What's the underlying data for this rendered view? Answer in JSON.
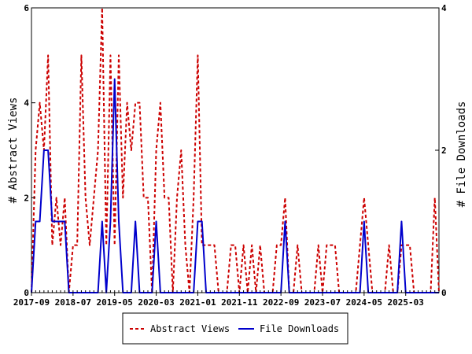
{
  "chart_data": {
    "type": "line",
    "title": "",
    "xlabel": "",
    "ylabel": "# Abstract Views",
    "y2label": "# File Downloads",
    "ylim": [
      0,
      6
    ],
    "y2lim": [
      0,
      4
    ],
    "yticks": [
      0,
      2,
      4,
      6
    ],
    "y2ticks": [
      0,
      2,
      4
    ],
    "x_start": "2017-09",
    "x_end": "2025-11",
    "x_ticks": [
      "2017-09",
      "2018-07",
      "2019-05",
      "2020-03",
      "2021-01",
      "2021-11",
      "2022-09",
      "2023-07",
      "2024-05",
      "2025-03"
    ],
    "grid": false,
    "legend_position": "bottom",
    "colors": {
      "views": "#cc0000",
      "downloads": "#0000cc"
    },
    "series": [
      {
        "name": "Abstract Views",
        "axis": "left",
        "style": "dashed",
        "x": [
          "2017-09",
          "2017-10",
          "2017-11",
          "2017-12",
          "2018-01",
          "2018-02",
          "2018-03",
          "2018-04",
          "2018-05",
          "2018-06",
          "2018-07",
          "2018-08",
          "2018-09",
          "2018-10",
          "2018-11",
          "2018-12",
          "2019-01",
          "2019-02",
          "2019-03",
          "2019-04",
          "2019-05",
          "2019-06",
          "2019-07",
          "2019-08",
          "2019-09",
          "2019-10",
          "2019-11",
          "2019-12",
          "2020-01",
          "2020-02",
          "2020-03",
          "2020-04",
          "2020-05",
          "2020-06",
          "2020-07",
          "2020-08",
          "2020-09",
          "2020-10",
          "2020-11",
          "2020-12",
          "2021-01",
          "2021-02",
          "2021-03",
          "2021-04",
          "2021-05",
          "2021-06",
          "2021-07",
          "2021-08",
          "2021-09",
          "2021-10",
          "2021-11",
          "2021-12",
          "2022-01",
          "2022-02",
          "2022-03",
          "2022-04",
          "2022-05",
          "2022-06",
          "2022-07",
          "2022-08",
          "2022-09",
          "2022-10",
          "2022-11",
          "2022-12",
          "2023-01",
          "2023-02",
          "2023-03",
          "2023-04",
          "2023-05",
          "2023-06",
          "2023-07",
          "2023-08",
          "2023-09",
          "2023-10",
          "2023-11",
          "2023-12",
          "2024-01",
          "2024-02",
          "2024-03",
          "2024-04",
          "2024-05",
          "2024-06",
          "2024-07",
          "2024-08",
          "2024-09",
          "2024-10",
          "2024-11",
          "2024-12",
          "2025-01",
          "2025-02",
          "2025-03",
          "2025-04",
          "2025-05",
          "2025-06",
          "2025-07",
          "2025-08",
          "2025-09",
          "2025-10",
          "2025-11"
        ],
        "values": [
          0,
          3,
          4,
          3,
          5,
          1,
          2,
          1,
          2,
          0,
          1,
          1,
          5,
          2,
          1,
          2,
          3,
          6,
          1,
          5,
          1,
          5,
          2,
          4,
          3,
          4,
          4,
          2,
          2,
          0,
          3,
          4,
          2,
          2,
          0,
          2,
          3,
          1,
          0,
          2,
          5,
          1,
          1,
          1,
          1,
          0,
          0,
          0,
          1,
          1,
          0,
          1,
          0,
          1,
          0,
          1,
          0,
          0,
          0,
          1,
          1,
          2,
          0,
          0,
          1,
          0,
          0,
          0,
          0,
          1,
          0,
          1,
          1,
          1,
          0,
          0,
          0,
          0,
          0,
          1,
          2,
          1,
          0,
          0,
          0,
          0,
          1,
          0,
          0,
          1,
          1,
          1,
          0,
          0,
          0,
          0,
          0,
          2,
          0
        ]
      },
      {
        "name": "File Downloads",
        "axis": "right",
        "style": "solid",
        "x": [
          "2017-09",
          "2017-10",
          "2017-11",
          "2017-12",
          "2018-01",
          "2018-02",
          "2018-03",
          "2018-04",
          "2018-05",
          "2018-06",
          "2018-07",
          "2018-08",
          "2018-09",
          "2018-10",
          "2018-11",
          "2018-12",
          "2019-01",
          "2019-02",
          "2019-03",
          "2019-04",
          "2019-05",
          "2019-06",
          "2019-07",
          "2019-08",
          "2019-09",
          "2019-10",
          "2019-11",
          "2019-12",
          "2020-01",
          "2020-02",
          "2020-03",
          "2020-04",
          "2020-05",
          "2020-06",
          "2020-07",
          "2020-08",
          "2020-09",
          "2020-10",
          "2020-11",
          "2020-12",
          "2021-01",
          "2021-02",
          "2021-03",
          "2021-04",
          "2021-05",
          "2021-06",
          "2021-07",
          "2021-08",
          "2021-09",
          "2021-10",
          "2021-11",
          "2021-12",
          "2022-01",
          "2022-02",
          "2022-03",
          "2022-04",
          "2022-05",
          "2022-06",
          "2022-07",
          "2022-08",
          "2022-09",
          "2022-10",
          "2022-11",
          "2022-12",
          "2023-01",
          "2023-02",
          "2023-03",
          "2023-04",
          "2023-05",
          "2023-06",
          "2023-07",
          "2023-08",
          "2023-09",
          "2023-10",
          "2023-11",
          "2023-12",
          "2024-01",
          "2024-02",
          "2024-03",
          "2024-04",
          "2024-05",
          "2024-06",
          "2024-07",
          "2024-08",
          "2024-09",
          "2024-10",
          "2024-11",
          "2024-12",
          "2025-01",
          "2025-02",
          "2025-03",
          "2025-04",
          "2025-05",
          "2025-06",
          "2025-07",
          "2025-08",
          "2025-09",
          "2025-10",
          "2025-11"
        ],
        "values": [
          0,
          1,
          1,
          2,
          2,
          1,
          1,
          1,
          1,
          0,
          0,
          0,
          0,
          0,
          0,
          0,
          0,
          1,
          0,
          1,
          3,
          1,
          0,
          0,
          0,
          1,
          0,
          0,
          0,
          0,
          1,
          0,
          0,
          0,
          0,
          0,
          0,
          0,
          0,
          0,
          1,
          1,
          0,
          0,
          0,
          0,
          0,
          0,
          0,
          0,
          0,
          0,
          0,
          0,
          0,
          0,
          0,
          0,
          0,
          0,
          0,
          1,
          0,
          0,
          0,
          0,
          0,
          0,
          0,
          0,
          0,
          0,
          0,
          0,
          0,
          0,
          0,
          0,
          0,
          0,
          1,
          0,
          0,
          0,
          0,
          0,
          0,
          0,
          0,
          1,
          0,
          0,
          0,
          0,
          0,
          0,
          0,
          0,
          0
        ]
      }
    ]
  }
}
